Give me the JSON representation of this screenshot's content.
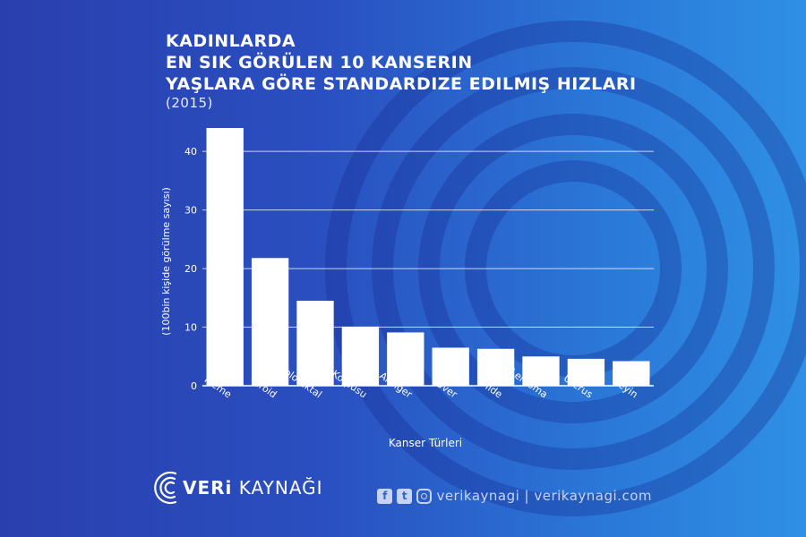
{
  "title": {
    "line1": "KADINLARDA",
    "line2": "EN SIK GÖRÜLEN 10 KANSERIN",
    "line3": "YAŞLARA GÖRE STANDARDIZE EDILMIŞ HIZLARI",
    "year": "(2015)"
  },
  "chart_data": {
    "type": "bar",
    "categories": [
      "Meme",
      "Tiroid",
      "Kolorektal",
      "Uterus Korpusu",
      "Akciğer",
      "Over",
      "Mide",
      "Lenfoma",
      "Uterus",
      "Beyin"
    ],
    "values": [
      44,
      21.8,
      14.5,
      10.1,
      9.1,
      6.5,
      6.3,
      5,
      4.6,
      4.2
    ],
    "xlabel": "Kanser Türleri",
    "ylabel": "(100bin kişide görülme sayısı)",
    "ylim": [
      0,
      44
    ],
    "yticks": [
      0,
      10,
      20,
      30,
      40
    ],
    "grid": true,
    "bar_color": "#ffffff"
  },
  "footer": {
    "logo_prefix": "VERi",
    "logo_suffix": "KAYNAĞI",
    "facebook_icon": "f",
    "twitter_icon": "t",
    "social_text": "verikaynagi | verikaynagi.com"
  }
}
